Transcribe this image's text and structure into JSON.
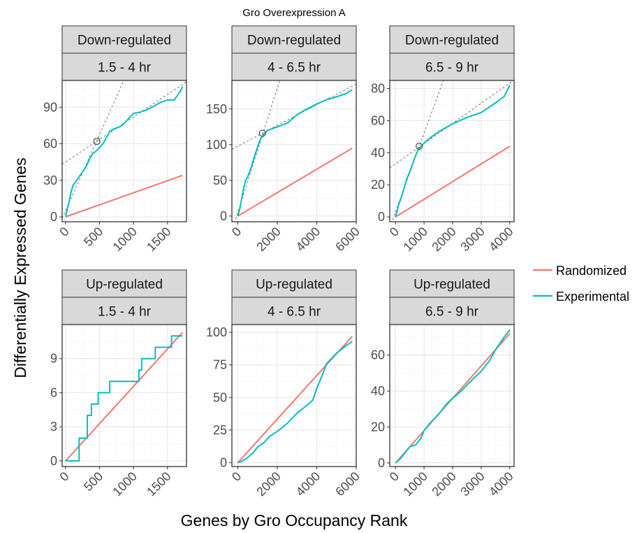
{
  "title": "Gro Overexpression A",
  "colors": {
    "Randomized": "#F8766D",
    "Experimental": "#00BFC4",
    "fit": "#666666"
  },
  "chart_data": {
    "type": "line",
    "title": "Gro Overexpression A",
    "xlabel": "Genes by Gro Occupancy Rank",
    "ylabel": "Differentially Expressed Genes",
    "legend": {
      "position": "right",
      "entries": [
        "Randomized",
        "Experimental"
      ]
    },
    "grid": true,
    "panels": [
      {
        "strip1": "Down-regulated",
        "strip2": "1.5 - 4 hr",
        "xlim": [
          -50,
          1780
        ],
        "ylim": [
          -4,
          112
        ],
        "xticks": [
          0,
          500,
          1000,
          1500
        ],
        "yticks": [
          0,
          30,
          60,
          90
        ],
        "randomized": [
          [
            0,
            0
          ],
          [
            1720,
            34
          ]
        ],
        "experimental": [
          [
            0,
            0
          ],
          [
            20,
            5
          ],
          [
            50,
            12
          ],
          [
            80,
            20
          ],
          [
            110,
            26
          ],
          [
            150,
            29
          ],
          [
            200,
            33
          ],
          [
            250,
            37
          ],
          [
            300,
            41
          ],
          [
            350,
            47
          ],
          [
            400,
            52
          ],
          [
            450,
            54
          ],
          [
            500,
            57
          ],
          [
            550,
            60
          ],
          [
            600,
            65
          ],
          [
            650,
            70
          ],
          [
            700,
            72
          ],
          [
            750,
            73
          ],
          [
            800,
            74
          ],
          [
            850,
            76
          ],
          [
            900,
            79
          ],
          [
            950,
            82
          ],
          [
            1000,
            85
          ],
          [
            1100,
            86
          ],
          [
            1200,
            88
          ],
          [
            1300,
            91
          ],
          [
            1400,
            94
          ],
          [
            1500,
            96
          ],
          [
            1600,
            96
          ],
          [
            1650,
            100
          ],
          [
            1700,
            104
          ],
          [
            1720,
            107
          ]
        ],
        "fit_lines": [
          {
            "slope": 0.125,
            "intercept": 5
          },
          {
            "slope": 0.037,
            "intercept": 45
          }
        ],
        "breakpoint": [
          460,
          62
        ]
      },
      {
        "strip1": "Down-regulated",
        "strip2": "4 - 6.5 hr",
        "xlim": [
          -300,
          6000
        ],
        "ylim": [
          -8,
          190
        ],
        "xticks": [
          0,
          2000,
          4000,
          6000
        ],
        "yticks": [
          0,
          50,
          100,
          150
        ],
        "randomized": [
          [
            0,
            0
          ],
          [
            5800,
            95
          ]
        ],
        "experimental": [
          [
            0,
            0
          ],
          [
            100,
            10
          ],
          [
            200,
            25
          ],
          [
            300,
            40
          ],
          [
            400,
            50
          ],
          [
            500,
            55
          ],
          [
            600,
            62
          ],
          [
            700,
            70
          ],
          [
            800,
            80
          ],
          [
            900,
            88
          ],
          [
            1000,
            97
          ],
          [
            1100,
            105
          ],
          [
            1200,
            110
          ],
          [
            1300,
            114
          ],
          [
            1400,
            117
          ],
          [
            1500,
            120
          ],
          [
            1700,
            122
          ],
          [
            2000,
            125
          ],
          [
            2500,
            130
          ],
          [
            3000,
            142
          ],
          [
            3500,
            150
          ],
          [
            4000,
            157
          ],
          [
            4500,
            163
          ],
          [
            5000,
            167
          ],
          [
            5500,
            172
          ],
          [
            5800,
            177
          ]
        ],
        "fit_lines": [
          {
            "slope": 0.087,
            "intercept": 5
          },
          {
            "slope": 0.0145,
            "intercept": 98
          }
        ],
        "breakpoint": [
          1250,
          116
        ]
      },
      {
        "strip1": "Down-regulated",
        "strip2": "6.5 - 9 hr",
        "xlim": [
          -200,
          4150
        ],
        "ylim": [
          -3,
          85
        ],
        "xticks": [
          0,
          1000,
          2000,
          3000,
          4000
        ],
        "yticks": [
          0,
          20,
          40,
          60,
          80
        ],
        "randomized": [
          [
            0,
            0
          ],
          [
            4000,
            44
          ]
        ],
        "experimental": [
          [
            0,
            0
          ],
          [
            50,
            3
          ],
          [
            100,
            7
          ],
          [
            200,
            12
          ],
          [
            300,
            18
          ],
          [
            400,
            24
          ],
          [
            500,
            28
          ],
          [
            600,
            33
          ],
          [
            700,
            38
          ],
          [
            800,
            42
          ],
          [
            900,
            44
          ],
          [
            1000,
            46
          ],
          [
            1200,
            49
          ],
          [
            1500,
            53
          ],
          [
            2000,
            58
          ],
          [
            2500,
            62
          ],
          [
            3000,
            65
          ],
          [
            3500,
            71
          ],
          [
            3800,
            75
          ],
          [
            4000,
            82
          ]
        ],
        "fit_lines": [
          {
            "slope": 0.049,
            "intercept": 3
          },
          {
            "slope": 0.0126,
            "intercept": 33
          }
        ],
        "breakpoint": [
          830,
          44
        ]
      },
      {
        "strip1": "Up-regulated",
        "strip2": "1.5 - 4 hr",
        "xlim": [
          -50,
          1780
        ],
        "ylim": [
          -0.5,
          12
        ],
        "xticks": [
          0,
          500,
          1000,
          1500
        ],
        "yticks": [
          0,
          3,
          6,
          9
        ],
        "randomized": [
          [
            0,
            0
          ],
          [
            1720,
            11.3
          ]
        ],
        "experimental_step": [
          [
            0,
            0
          ],
          [
            200,
            0
          ],
          [
            200,
            2
          ],
          [
            320,
            2
          ],
          [
            320,
            4
          ],
          [
            380,
            4
          ],
          [
            380,
            5
          ],
          [
            480,
            5
          ],
          [
            480,
            6
          ],
          [
            650,
            6
          ],
          [
            650,
            7
          ],
          [
            1080,
            7
          ],
          [
            1080,
            8
          ],
          [
            1120,
            8
          ],
          [
            1120,
            9
          ],
          [
            1320,
            9
          ],
          [
            1320,
            10
          ],
          [
            1560,
            10
          ],
          [
            1560,
            11
          ],
          [
            1720,
            11
          ]
        ]
      },
      {
        "strip1": "Up-regulated",
        "strip2": "4 - 6.5 hr",
        "xlim": [
          -300,
          6000
        ],
        "ylim": [
          -3,
          106
        ],
        "xticks": [
          0,
          2000,
          4000,
          6000
        ],
        "yticks": [
          0,
          25,
          50,
          75,
          100
        ],
        "randomized": [
          [
            0,
            0
          ],
          [
            5800,
            97
          ]
        ],
        "experimental": [
          [
            0,
            0
          ],
          [
            200,
            1
          ],
          [
            500,
            4
          ],
          [
            800,
            8
          ],
          [
            1000,
            12
          ],
          [
            1300,
            15
          ],
          [
            1600,
            20
          ],
          [
            2000,
            24
          ],
          [
            2500,
            30
          ],
          [
            3000,
            38
          ],
          [
            3500,
            44
          ],
          [
            3800,
            48
          ],
          [
            4000,
            57
          ],
          [
            4300,
            68
          ],
          [
            4500,
            76
          ],
          [
            5000,
            84
          ],
          [
            5500,
            90
          ],
          [
            5800,
            93
          ]
        ]
      },
      {
        "strip1": "Up-regulated",
        "strip2": "6.5 - 9 hr",
        "xlim": [
          -200,
          4150
        ],
        "ylim": [
          -2,
          77
        ],
        "xticks": [
          0,
          1000,
          2000,
          3000,
          4000
        ],
        "yticks": [
          0,
          20,
          40,
          60
        ],
        "randomized": [
          [
            0,
            0
          ],
          [
            4000,
            72
          ]
        ],
        "experimental": [
          [
            0,
            0
          ],
          [
            150,
            2
          ],
          [
            300,
            5
          ],
          [
            500,
            9
          ],
          [
            700,
            10
          ],
          [
            900,
            14
          ],
          [
            1000,
            18
          ],
          [
            1200,
            22
          ],
          [
            1500,
            27
          ],
          [
            1800,
            33
          ],
          [
            2000,
            36
          ],
          [
            2300,
            40
          ],
          [
            2600,
            45
          ],
          [
            3000,
            51
          ],
          [
            3300,
            57
          ],
          [
            3500,
            63
          ],
          [
            3800,
            70
          ],
          [
            4000,
            74
          ]
        ]
      }
    ]
  }
}
